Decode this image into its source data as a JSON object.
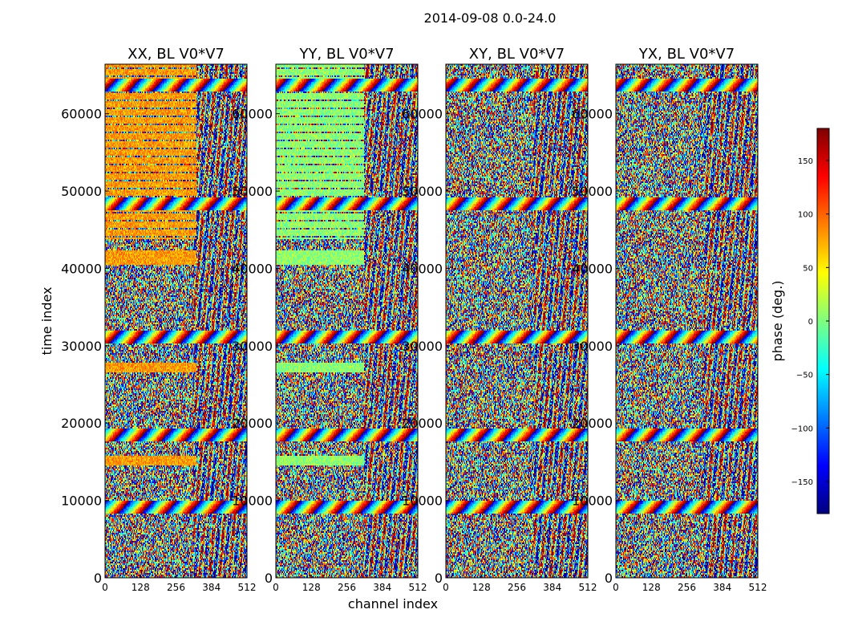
{
  "chart_data": {
    "type": "heatmap",
    "title": "2014-09-08 0.0-24.0",
    "xlabel": "channel index",
    "ylabel": "time index",
    "xlim": [
      0,
      512
    ],
    "ylim": [
      0,
      66400
    ],
    "x_ticks": [
      0,
      128,
      256,
      384,
      512
    ],
    "y_ticks": [
      0,
      10000,
      20000,
      30000,
      40000,
      50000,
      60000
    ],
    "panels": [
      {
        "title": "XX, BL V0*V7",
        "mean_phase_deg": 80,
        "dominant_color": "#f5c000"
      },
      {
        "title": "YY, BL V0*V7",
        "mean_phase_deg": 5,
        "dominant_color": "#7dff7a"
      },
      {
        "title": "XY, BL V0*V7",
        "mean_phase_deg": null,
        "dominant_color": ""
      },
      {
        "title": "YX, BL V0*V7",
        "mean_phase_deg": null,
        "dominant_color": ""
      }
    ],
    "colorbar": {
      "label": "phase (deg.)",
      "range": [
        -180,
        180
      ],
      "ticks": [
        -150,
        -100,
        -50,
        0,
        50,
        100,
        150
      ],
      "tick_labels": [
        "−150",
        "−100",
        "−50",
        "0",
        "50",
        "100",
        "150"
      ],
      "colormap": "jet",
      "colormap_stops": [
        "#00007f",
        "#0000ff",
        "#007fff",
        "#00ffff",
        "#7fff7f",
        "#ffff00",
        "#ff7f00",
        "#ff0000",
        "#7f0000"
      ]
    }
  }
}
